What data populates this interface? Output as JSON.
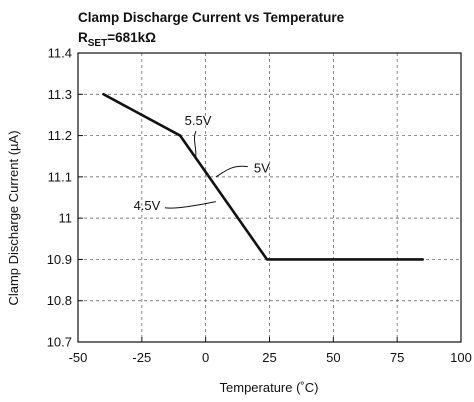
{
  "chart_data": {
    "type": "line",
    "title": "Clamp Discharge Current vs Temperature",
    "subtitle": "RSET=681kΩ",
    "subtitle_parts": {
      "main": "R",
      "sub": "SET",
      "rest": "=681kΩ"
    },
    "xlabel": "Temperature (˚C)",
    "ylabel": "Clamp Discharge Current (µA)",
    "xlim": [
      -50,
      100
    ],
    "ylim": [
      10.7,
      11.4
    ],
    "x_ticks": [
      -50,
      -25,
      0,
      25,
      50,
      75,
      100
    ],
    "y_ticks": [
      10.7,
      10.8,
      10.9,
      11,
      11.1,
      11.2,
      11.3,
      11.4
    ],
    "x_tick_labels": [
      "-50",
      "-25",
      "0",
      "25",
      "50",
      "75",
      "100"
    ],
    "y_tick_labels": [
      "10.7",
      "10.8",
      "10.9",
      "11",
      "11.1",
      "11.2",
      "11.3",
      "11.4"
    ],
    "grid": true,
    "grid_style": "dashed",
    "line_color": "#111111",
    "series": [
      {
        "x": [
          -40,
          -10,
          24,
          85
        ],
        "y": [
          11.3,
          11.2,
          10.9,
          10.9
        ]
      }
    ],
    "annotations": [
      {
        "text": "5.5V",
        "x": -3,
        "y": 11.235,
        "leader_to": [
          -4,
          11.145
        ]
      },
      {
        "text": "5V",
        "x": 22,
        "y": 11.12,
        "leader_to": [
          4,
          11.1
        ]
      },
      {
        "text": "4.5V",
        "x": -23,
        "y": 11.03,
        "leader_to": [
          4,
          11.04
        ]
      }
    ]
  }
}
